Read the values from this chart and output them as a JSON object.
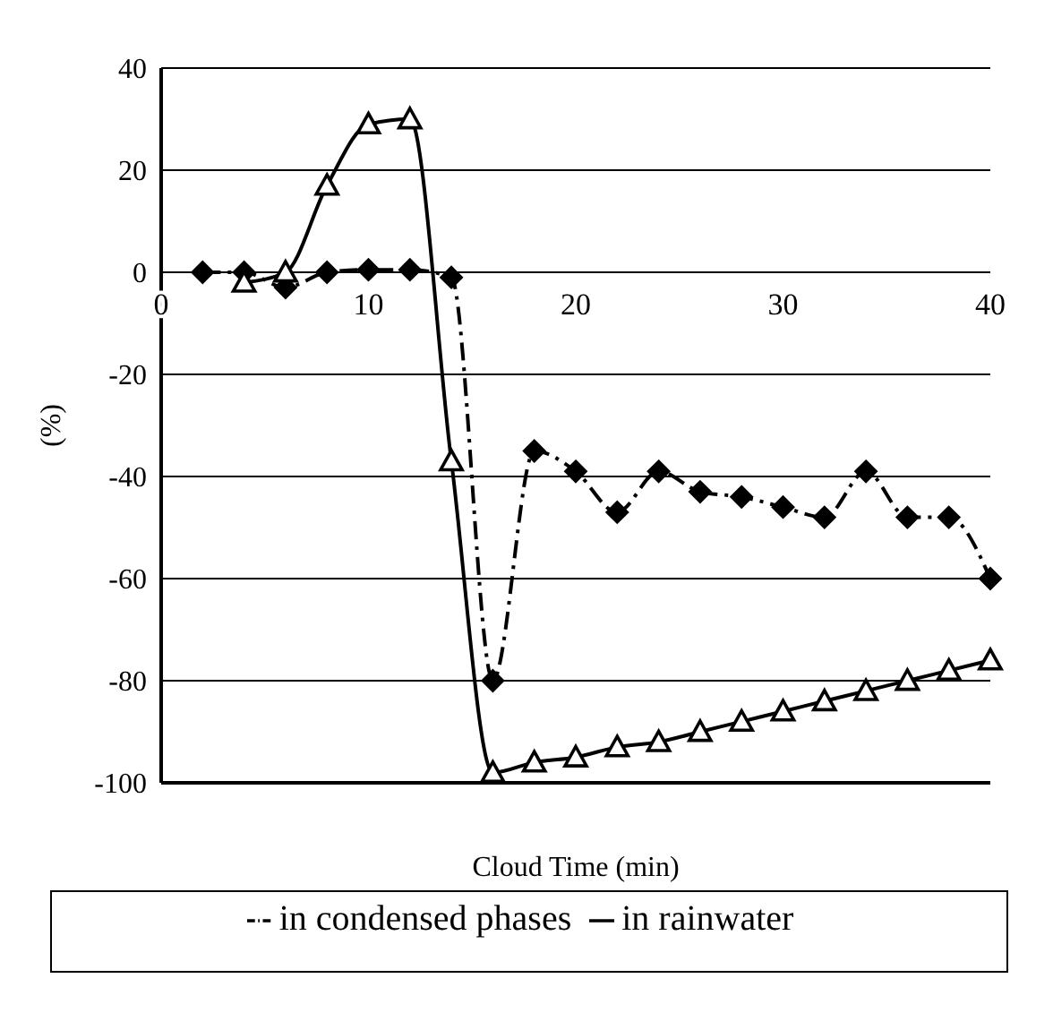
{
  "chart_data": {
    "type": "line",
    "xlabel": "Cloud Time (min)",
    "ylabel": "(%)",
    "xlim": [
      0,
      40
    ],
    "xticks": [
      0,
      10,
      20,
      30,
      40
    ],
    "ylim": [
      -100,
      40
    ],
    "yticks": [
      -100,
      -80,
      -60,
      -40,
      -20,
      0,
      20,
      40
    ],
    "grid": "y",
    "legend": "bottom",
    "series": [
      {
        "name": "in condensed phases",
        "color": "#000000",
        "marker": "diamond",
        "line_style": "dashed",
        "x": [
          2,
          4,
          6,
          8,
          10,
          12,
          14,
          16,
          18,
          20,
          22,
          24,
          26,
          28,
          30,
          32,
          34,
          36,
          38,
          40
        ],
        "values": [
          0,
          0,
          -3,
          0,
          0.5,
          0.5,
          -1,
          -80,
          -35,
          -39,
          -47,
          -39,
          -43,
          -44,
          -46,
          -48,
          -39,
          -48,
          -48,
          -60
        ]
      },
      {
        "name": "in rainwater",
        "color": "#000000",
        "marker": "triangle",
        "line_style": "solid",
        "x": [
          4,
          6,
          8,
          10,
          12,
          14,
          16,
          18,
          20,
          22,
          24,
          26,
          28,
          30,
          32,
          34,
          36,
          38,
          40
        ],
        "values": [
          -2,
          0,
          17,
          29,
          30,
          -37,
          -98,
          -96,
          -95,
          -93,
          -92,
          -90,
          -88,
          -86,
          -84,
          -82,
          -80,
          -78,
          -76
        ]
      }
    ]
  }
}
